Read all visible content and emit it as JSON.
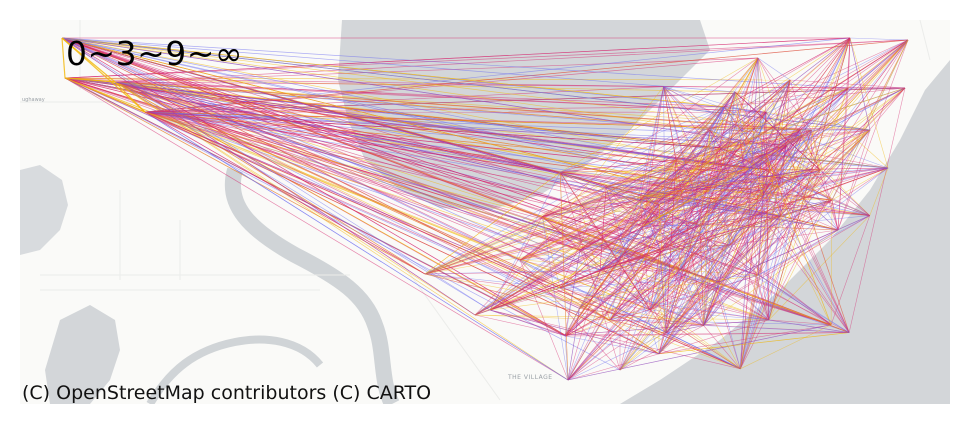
{
  "map": {
    "legend_label": "0~3~9~∞",
    "attribution": "(C) OpenStreetMap contributors (C) CARTO",
    "place_label": "THE VILLAGE",
    "road_label": "ughaway",
    "colors": {
      "land": "#fafaf8",
      "water": "#d3d6d9",
      "park": "#f0f1ee",
      "band_low": "#6b6cf0",
      "band_mid": "#d6246e",
      "band_high": "#f2b705"
    }
  }
}
